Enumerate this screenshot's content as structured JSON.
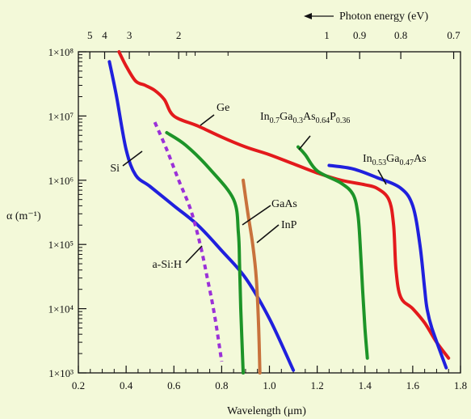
{
  "chart_data": {
    "type": "line",
    "title": "",
    "xlabel": "Wavelength (μm)",
    "ylabel": "α (m⁻¹)",
    "xlim": [
      0.2,
      1.8
    ],
    "ylim": [
      1000,
      100000000
    ],
    "yscale": "log",
    "grid": false,
    "x_ticks": [
      "0.2",
      "0.4",
      "0.6",
      "0.8",
      "1.0",
      "1.2",
      "1.4",
      "1.6",
      "1.8"
    ],
    "y_ticks": [
      "1×10³",
      "1×10⁴",
      "1×10⁵",
      "1×10⁶",
      "1×10⁷",
      "1×10⁸"
    ],
    "top_axis": {
      "label": "Photon energy (eV)",
      "ticks": [
        {
          "label": "5",
          "ev": 5
        },
        {
          "label": "4",
          "ev": 4
        },
        {
          "label": "3",
          "ev": 3
        },
        {
          "label": "2",
          "ev": 2
        },
        {
          "label": "1",
          "ev": 1
        },
        {
          "label": "0.9",
          "ev": 0.9
        },
        {
          "label": "0.8",
          "ev": 0.8
        },
        {
          "label": "0.7",
          "ev": 0.7
        }
      ]
    },
    "series": [
      {
        "key": "ge",
        "color": "#e31a1c",
        "dashed": false,
        "x": [
          0.37,
          0.4,
          0.44,
          0.48,
          0.52,
          0.56,
          0.6,
          0.7,
          0.8,
          0.9,
          1.0,
          1.1,
          1.2,
          1.3,
          1.4,
          1.45,
          1.5,
          1.52,
          1.53,
          1.55,
          1.6,
          1.65,
          1.7,
          1.75
        ],
        "y": [
          100000000,
          60000000,
          35000000,
          30000000,
          25000000,
          18000000,
          10000000,
          7000000,
          4700000,
          3300000,
          2500000,
          1800000,
          1300000,
          1000000,
          850000,
          750000,
          500000,
          200000,
          40000,
          15000,
          10000,
          6000,
          3000,
          1700
        ]
      },
      {
        "key": "si",
        "color": "#2020dd",
        "dashed": false,
        "x": [
          0.33,
          0.36,
          0.4,
          0.44,
          0.5,
          0.6,
          0.7,
          0.8,
          0.9,
          1.0,
          1.1
        ],
        "y": [
          70000000,
          20000000,
          3000000,
          1200000,
          800000,
          400000,
          200000,
          80000,
          30000,
          7000,
          1100
        ]
      },
      {
        "key": "in053",
        "color": "#2020dd",
        "dashed": false,
        "x": [
          1.25,
          1.35,
          1.45,
          1.55,
          1.6,
          1.63,
          1.65,
          1.66,
          1.68,
          1.74
        ],
        "y": [
          1700000,
          1500000,
          1100000,
          750000,
          400000,
          100000,
          20000,
          10000,
          5000,
          1200
        ]
      },
      {
        "key": "ingaasp",
        "color": "#1d9428",
        "dashed": false,
        "x": [
          1.12,
          1.15,
          1.2,
          1.3,
          1.35,
          1.37,
          1.38,
          1.39,
          1.4,
          1.41
        ],
        "y": [
          3300000,
          2500000,
          1400000,
          900000,
          600000,
          300000,
          100000,
          20000,
          5000,
          1700
        ]
      },
      {
        "key": "gaas",
        "color": "#1d9428",
        "dashed": false,
        "x": [
          0.57,
          0.65,
          0.75,
          0.85,
          0.87,
          0.875,
          0.88,
          0.89
        ],
        "y": [
          5500000,
          3500000,
          1500000,
          500000,
          150000,
          50000,
          10000,
          1000
        ]
      },
      {
        "key": "inp",
        "color": "#c8723c",
        "dashed": false,
        "x": [
          0.89,
          0.91,
          0.93,
          0.945,
          0.955,
          0.96
        ],
        "y": [
          1000000,
          300000,
          100000,
          30000,
          5000,
          1000
        ]
      },
      {
        "key": "asi",
        "color": "#9b30d8",
        "dashed": true,
        "x": [
          0.52,
          0.57,
          0.62,
          0.67,
          0.71,
          0.74,
          0.77,
          0.8
        ],
        "y": [
          8000000,
          3000000,
          1000000,
          350000,
          100000,
          30000,
          8000,
          1500
        ]
      }
    ],
    "labels": [
      {
        "key": "ge",
        "text": "Ge"
      },
      {
        "key": "si",
        "text": "Si"
      },
      {
        "key": "gaas",
        "text": "GaAs"
      },
      {
        "key": "inp",
        "text": "InP"
      },
      {
        "key": "asi",
        "text": "a-Si:H"
      },
      {
        "key": "ingaasp",
        "parts": [
          {
            "t": "In"
          },
          {
            "t": "0.7",
            "sub": true
          },
          {
            "t": "Ga"
          },
          {
            "t": "0.3",
            "sub": true
          },
          {
            "t": "As"
          },
          {
            "t": "0.64",
            "sub": true
          },
          {
            "t": "P"
          },
          {
            "t": "0.36",
            "sub": true
          }
        ]
      },
      {
        "key": "in053",
        "parts": [
          {
            "t": "In"
          },
          {
            "t": "0.53",
            "sub": true
          },
          {
            "t": "Ga"
          },
          {
            "t": "0.47",
            "sub": true
          },
          {
            "t": "As"
          }
        ]
      }
    ]
  }
}
